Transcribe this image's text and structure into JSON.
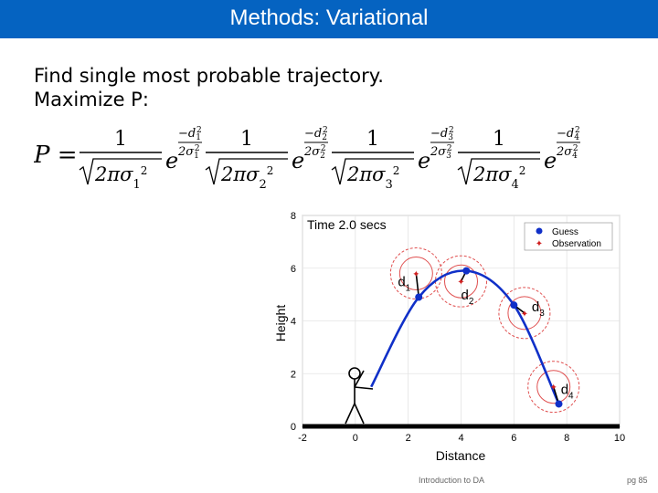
{
  "slide": {
    "title": "Methods: Variational",
    "bullets": [
      "Find single most probable trajectory.",
      "Maximize P:"
    ],
    "formula": {
      "lhs": "P =",
      "terms": [
        {
          "num": "1",
          "den": "2πσ",
          "sub": "1",
          "expo_num": "−d",
          "expo_den": "2σ",
          "idx": "1"
        },
        {
          "num": "1",
          "den": "2πσ",
          "sub": "2",
          "expo_num": "−d",
          "expo_den": "2σ",
          "idx": "2"
        },
        {
          "num": "1",
          "den": "2πσ",
          "sub": "3",
          "expo_num": "−d",
          "expo_den": "2σ",
          "idx": "3"
        },
        {
          "num": "1",
          "den": "2πσ",
          "sub": "4",
          "expo_num": "−d",
          "expo_den": "2σ",
          "idx": "4"
        }
      ]
    },
    "footer_center": "Introduction to DA",
    "footer_right": "pg 85"
  },
  "chart_data": {
    "type": "line",
    "title": "Time 2.0 secs",
    "xlabel": "Distance",
    "ylabel": "Height",
    "xlim": [
      -2,
      10
    ],
    "ylim": [
      0,
      8
    ],
    "xticks": [
      "-2",
      "0",
      "2",
      "4",
      "6",
      "8",
      "10"
    ],
    "yticks": [
      "0",
      "2",
      "4",
      "6",
      "8"
    ],
    "legend": {
      "position": "top-right",
      "entries": [
        "Guess",
        "Observation"
      ]
    },
    "series": [
      {
        "name": "Guess",
        "x": [
          0.6,
          2.4,
          4.2,
          6.0,
          7.7
        ],
        "y": [
          1.5,
          4.9,
          5.9,
          4.6,
          0.85
        ],
        "markers": [
          [
            2.4,
            4.9
          ],
          [
            4.2,
            5.9
          ],
          [
            6.0,
            4.6
          ],
          [
            7.7,
            0.85
          ]
        ]
      },
      {
        "name": "Observation",
        "points": [
          [
            2.3,
            5.8
          ],
          [
            4.0,
            5.5
          ],
          [
            6.4,
            4.3
          ],
          [
            7.5,
            1.5
          ]
        ]
      }
    ],
    "uncertainty_circles": [
      [
        2.3,
        5.8
      ],
      [
        4.0,
        5.5
      ],
      [
        6.4,
        4.3
      ],
      [
        7.5,
        1.5
      ]
    ],
    "residual_labels": [
      "d1",
      "d2",
      "d3",
      "d4"
    ],
    "colors": {
      "guess": "#1030c8",
      "observation": "#d02020",
      "title_bar": "#0563c1"
    }
  }
}
